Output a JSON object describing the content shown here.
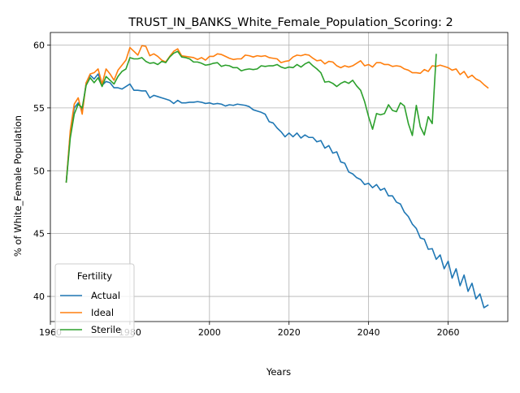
{
  "chart_data": {
    "type": "line",
    "title": "TRUST_IN_BANKS_White_Female_Population_Scoring: 2",
    "xlabel": "Years",
    "ylabel": "% of White_Female Population",
    "xlim": [
      1960,
      2075
    ],
    "ylim": [
      38,
      61
    ],
    "xticks": [
      1960,
      1980,
      2000,
      2020,
      2040,
      2060
    ],
    "yticks": [
      40,
      45,
      50,
      55,
      60
    ],
    "grid": true,
    "legend": {
      "title": "Fertility",
      "placement": "lower-left"
    },
    "series": [
      {
        "name": "Actual",
        "color": "#1f77b4",
        "x": [
          1964,
          1965,
          1966,
          1967,
          1968,
          1969,
          1970,
          1971,
          1972,
          1973,
          1974,
          1975,
          1976,
          1977,
          1978,
          1979,
          1980,
          1981,
          1982,
          1983,
          1984,
          1985,
          1986,
          1987,
          1988,
          1989,
          1990,
          1991,
          1992,
          1993,
          1994,
          1995,
          1996,
          1997,
          1998,
          1999,
          2000,
          2001,
          2002,
          2003,
          2004,
          2005,
          2006,
          2007,
          2008,
          2009,
          2010,
          2011,
          2012,
          2013,
          2014,
          2015,
          2016,
          2017,
          2018,
          2019,
          2020,
          2021,
          2022,
          2023,
          2024,
          2025,
          2026,
          2027,
          2028,
          2029,
          2030,
          2031,
          2032,
          2033,
          2034,
          2035,
          2036,
          2037,
          2038,
          2039,
          2040,
          2041,
          2042,
          2043,
          2044,
          2045,
          2046,
          2047,
          2048,
          2049,
          2050,
          2051,
          2052,
          2053,
          2054,
          2055,
          2056,
          2057,
          2058,
          2059,
          2060,
          2061,
          2062,
          2063,
          2064,
          2065,
          2066,
          2067,
          2068,
          2069,
          2070
        ],
        "values": [
          49.1,
          53.0,
          55.0,
          55.4,
          54.8,
          57.0,
          57.6,
          57.3,
          57.7,
          56.8,
          57.1,
          57.0,
          56.6,
          56.6,
          56.5,
          56.7,
          56.9,
          56.4,
          56.4,
          56.35,
          56.35,
          55.8,
          56.0,
          55.9,
          55.8,
          55.7,
          55.6,
          55.35,
          55.6,
          55.4,
          55.4,
          55.45,
          55.45,
          55.5,
          55.45,
          55.35,
          55.4,
          55.3,
          55.35,
          55.3,
          55.15,
          55.25,
          55.2,
          55.3,
          55.25,
          55.2,
          55.1,
          54.85,
          54.75,
          54.65,
          54.5,
          53.9,
          53.8,
          53.4,
          53.1,
          52.7,
          53.0,
          52.7,
          53.0,
          52.6,
          52.85,
          52.65,
          52.65,
          52.3,
          52.4,
          51.8,
          52.0,
          51.4,
          51.5,
          50.7,
          50.6,
          49.9,
          49.75,
          49.45,
          49.3,
          48.9,
          49.0,
          48.65,
          48.9,
          48.45,
          48.6,
          48.0,
          48.0,
          47.5,
          47.35,
          46.7,
          46.35,
          45.75,
          45.4,
          44.65,
          44.55,
          43.75,
          43.8,
          42.95,
          43.3,
          42.2,
          42.8,
          41.45,
          42.2,
          40.85,
          41.7,
          40.4,
          41.05,
          39.8,
          40.2,
          39.1,
          39.3
        ]
      },
      {
        "name": "Ideal",
        "color": "#ff7f0e",
        "x": [
          1964,
          1965,
          1966,
          1967,
          1968,
          1969,
          1970,
          1971,
          1972,
          1973,
          1974,
          1975,
          1976,
          1977,
          1978,
          1979,
          1980,
          1981,
          1982,
          1983,
          1984,
          1985,
          1986,
          1987,
          1988,
          1989,
          1990,
          1991,
          1992,
          1993,
          1994,
          1995,
          1996,
          1997,
          1998,
          1999,
          2000,
          2001,
          2002,
          2003,
          2004,
          2005,
          2006,
          2007,
          2008,
          2009,
          2010,
          2011,
          2012,
          2013,
          2014,
          2015,
          2016,
          2017,
          2018,
          2019,
          2020,
          2021,
          2022,
          2023,
          2024,
          2025,
          2026,
          2027,
          2028,
          2029,
          2030,
          2031,
          2032,
          2033,
          2034,
          2035,
          2036,
          2037,
          2038,
          2039,
          2040,
          2041,
          2042,
          2043,
          2044,
          2045,
          2046,
          2047,
          2048,
          2049,
          2050,
          2051,
          2052,
          2053,
          2054,
          2055,
          2056,
          2057,
          2058,
          2059,
          2060,
          2061,
          2062,
          2063,
          2064,
          2065,
          2066,
          2067,
          2068,
          2069,
          2070
        ],
        "values": [
          49.1,
          53.2,
          55.3,
          55.8,
          54.5,
          57.0,
          57.7,
          57.8,
          58.1,
          56.9,
          58.1,
          57.7,
          57.2,
          58.0,
          58.4,
          58.8,
          59.8,
          59.5,
          59.2,
          59.95,
          59.9,
          59.15,
          59.3,
          59.1,
          58.8,
          58.65,
          59.1,
          59.5,
          59.7,
          59.15,
          59.1,
          59.05,
          59.0,
          58.85,
          59.0,
          58.8,
          59.1,
          59.1,
          59.3,
          59.25,
          59.1,
          58.95,
          58.85,
          58.9,
          58.9,
          59.2,
          59.15,
          59.05,
          59.15,
          59.1,
          59.15,
          59.0,
          58.95,
          58.9,
          58.6,
          58.7,
          58.75,
          59.05,
          59.2,
          59.15,
          59.25,
          59.2,
          58.95,
          58.75,
          58.8,
          58.5,
          58.7,
          58.65,
          58.35,
          58.2,
          58.35,
          58.25,
          58.35,
          58.55,
          58.75,
          58.35,
          58.45,
          58.25,
          58.6,
          58.6,
          58.45,
          58.45,
          58.3,
          58.35,
          58.3,
          58.1,
          58.0,
          57.8,
          57.8,
          57.75,
          58.05,
          57.9,
          58.35,
          58.3,
          58.4,
          58.3,
          58.2,
          58.0,
          58.1,
          57.65,
          57.9,
          57.4,
          57.6,
          57.3,
          57.15,
          56.85,
          56.6
        ]
      },
      {
        "name": "Sterile",
        "color": "#2ca02c",
        "x": [
          1964,
          1965,
          1966,
          1967,
          1968,
          1969,
          1970,
          1971,
          1972,
          1973,
          1974,
          1975,
          1976,
          1977,
          1978,
          1979,
          1980,
          1981,
          1982,
          1983,
          1984,
          1985,
          1986,
          1987,
          1988,
          1989,
          1990,
          1991,
          1992,
          1993,
          1994,
          1995,
          1996,
          1997,
          1998,
          1999,
          2000,
          2001,
          2002,
          2003,
          2004,
          2005,
          2006,
          2007,
          2008,
          2009,
          2010,
          2011,
          2012,
          2013,
          2014,
          2015,
          2016,
          2017,
          2018,
          2019,
          2020,
          2021,
          2022,
          2023,
          2024,
          2025,
          2026,
          2027,
          2028,
          2029,
          2030,
          2031,
          2032,
          2033,
          2034,
          2035,
          2036,
          2037,
          2038,
          2039,
          2040,
          2041,
          2042,
          2043,
          2044,
          2045,
          2046,
          2047,
          2048,
          2049,
          2050,
          2051,
          2052,
          2053,
          2054,
          2055,
          2056,
          2057
        ],
        "values": [
          49.1,
          52.6,
          54.5,
          55.3,
          55.0,
          56.8,
          57.4,
          57.0,
          57.4,
          56.7,
          57.5,
          57.2,
          56.9,
          57.5,
          57.9,
          58.1,
          59.0,
          58.9,
          58.9,
          59.0,
          58.7,
          58.55,
          58.6,
          58.45,
          58.7,
          58.6,
          59.05,
          59.35,
          59.5,
          59.05,
          59.0,
          58.9,
          58.65,
          58.65,
          58.55,
          58.4,
          58.45,
          58.55,
          58.6,
          58.3,
          58.4,
          58.35,
          58.2,
          58.2,
          57.95,
          58.05,
          58.1,
          58.05,
          58.1,
          58.35,
          58.3,
          58.35,
          58.35,
          58.45,
          58.25,
          58.15,
          58.25,
          58.2,
          58.45,
          58.25,
          58.5,
          58.65,
          58.35,
          58.1,
          57.8,
          57.05,
          57.1,
          56.95,
          56.7,
          56.95,
          57.1,
          56.95,
          57.2,
          56.75,
          56.4,
          55.5,
          54.3,
          53.3,
          54.55,
          54.45,
          54.55,
          55.25,
          54.8,
          54.7,
          55.4,
          55.15,
          53.75,
          52.8,
          55.2,
          53.5,
          52.85,
          54.3,
          53.75,
          59.25
        ]
      }
    ]
  }
}
